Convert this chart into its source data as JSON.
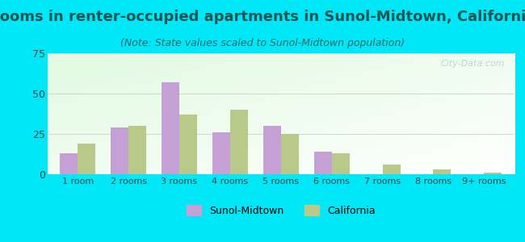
{
  "title": "Rooms in renter-occupied apartments in Sunol-Midtown, California",
  "subtitle": "(Note: State values scaled to Sunol-Midtown population)",
  "categories": [
    "1 room",
    "2 rooms",
    "3 rooms",
    "4 rooms",
    "5 rooms",
    "6 rooms",
    "7 rooms",
    "8 rooms",
    "9+ rooms"
  ],
  "sunol_values": [
    13,
    29,
    57,
    26,
    30,
    14,
    0,
    0,
    0
  ],
  "california_values": [
    19,
    30,
    37,
    40,
    25,
    13,
    6,
    3,
    1
  ],
  "sunol_color": "#c4a0d4",
  "california_color": "#b8c98a",
  "bar_width": 0.35,
  "ylim": [
    0,
    75
  ],
  "yticks": [
    0,
    25,
    50,
    75
  ],
  "background_outer": "#00e8f8",
  "title_color": "#1a5555",
  "subtitle_color": "#336666",
  "grid_color": "#c8ddc8",
  "title_fontsize": 13,
  "subtitle_fontsize": 9,
  "legend_labels": [
    "Sunol-Midtown",
    "California"
  ],
  "watermark": "City-Data.com"
}
